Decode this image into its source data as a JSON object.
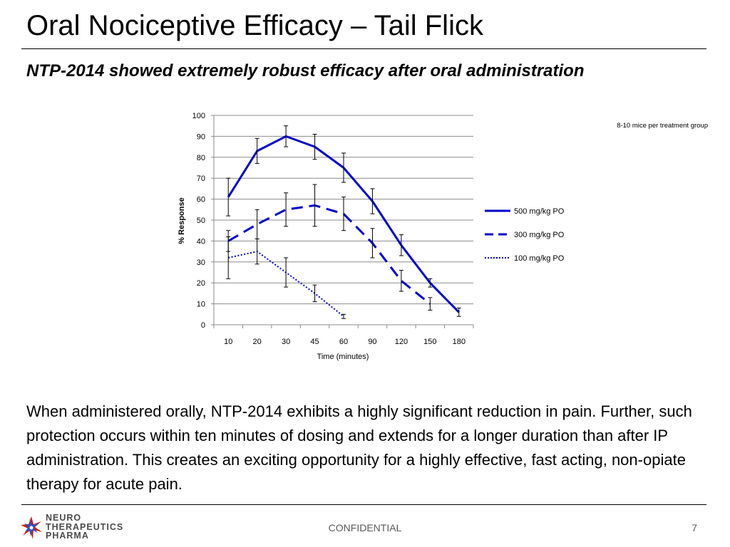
{
  "slide": {
    "title": "Oral Nociceptive Efficacy – Tail Flick",
    "subtitle": "NTP-2014 showed extremely robust efficacy after oral administration",
    "body": "When administered orally, NTP-2014 exhibits a highly significant reduction in pain.  Further, such protection occurs within ten minutes of dosing and extends for a longer duration than after IP administration.  This creates an exciting opportunity for a highly effective, fast acting, non-opiate therapy for acute pain.",
    "footer_center": "CONFIDENTIAL",
    "page_number": "7",
    "logo_lines": [
      "NEURO",
      "THERAPEUTICS",
      "PHARMA"
    ]
  },
  "chart_data": {
    "type": "line",
    "title": "",
    "xlabel": "Time (minutes)",
    "ylabel": "% Response",
    "annotation": "8-10 mice per treatment group",
    "categories": [
      "10",
      "20",
      "30",
      "45",
      "60",
      "90",
      "120",
      "150",
      "180"
    ],
    "ylim": [
      0,
      100
    ],
    "yticks": [
      0,
      10,
      20,
      30,
      40,
      50,
      60,
      70,
      80,
      90,
      100
    ],
    "grid": true,
    "legend_position": "right",
    "series": [
      {
        "name": "500 mg/kg  PO",
        "values": [
          61,
          83,
          90,
          85,
          75,
          59,
          38,
          20,
          6
        ],
        "errors": [
          9,
          6,
          5,
          6,
          7,
          6,
          5,
          2,
          2
        ],
        "color": "#0000cc",
        "style": "solid"
      },
      {
        "name": "300 mg/kg  PO",
        "values": [
          40,
          48,
          55,
          57,
          53,
          39,
          21,
          10,
          null
        ],
        "errors": [
          5,
          7,
          8,
          10,
          8,
          7,
          5,
          3,
          null
        ],
        "color": "#0000cc",
        "style": "dashed"
      },
      {
        "name": "100 mg/kg  PO",
        "values": [
          32,
          35,
          25,
          15,
          4,
          null,
          null,
          null,
          null
        ],
        "errors": [
          10,
          6,
          7,
          4,
          1,
          null,
          null,
          null,
          null
        ],
        "color": "#0000cc",
        "style": "dotted"
      }
    ]
  }
}
